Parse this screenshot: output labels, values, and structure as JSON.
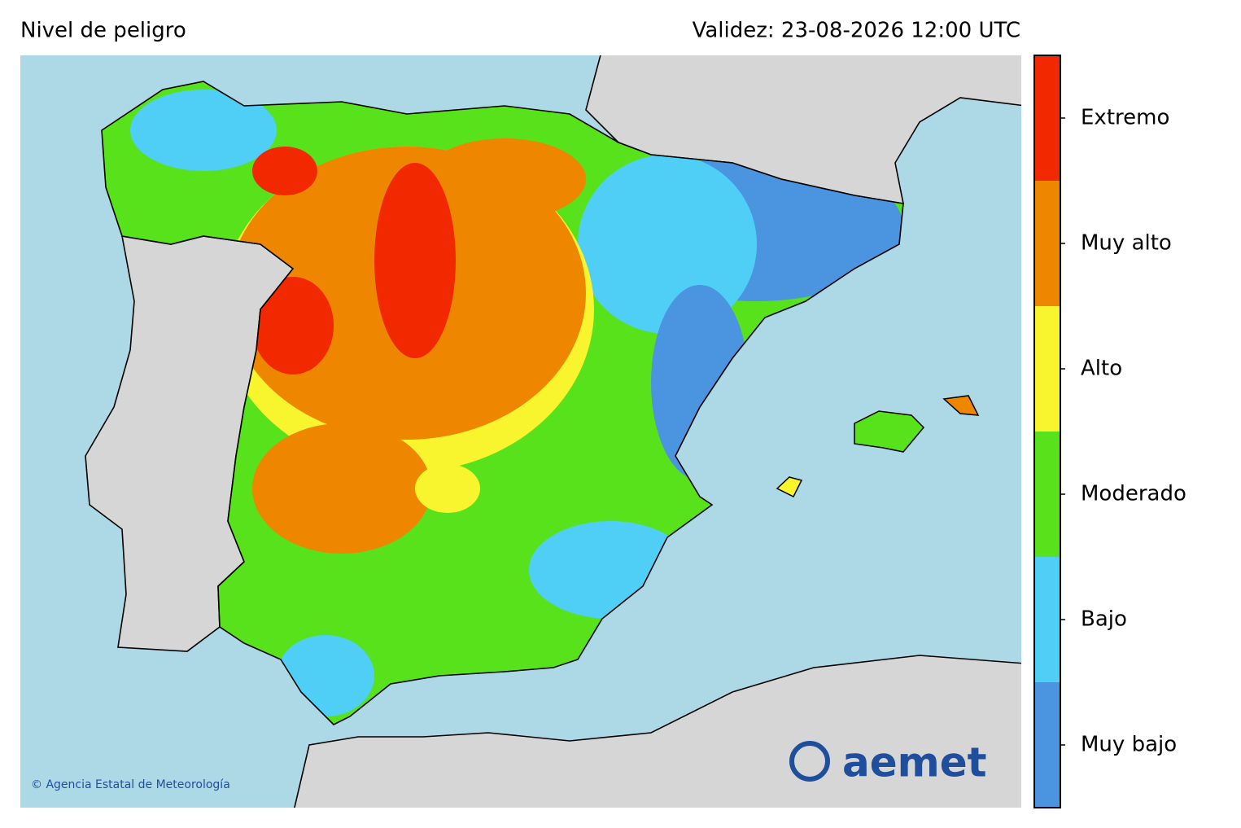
{
  "header": {
    "title": "Nivel de peligro",
    "validity": "Validez: 23-08-2026 12:00 UTC"
  },
  "legend": {
    "levels": [
      {
        "label": "Muy bajo",
        "color": "#4a94e0"
      },
      {
        "label": "Bajo",
        "color": "#4fcff6"
      },
      {
        "label": "Moderado",
        "color": "#58e21c"
      },
      {
        "label": "Alto",
        "color": "#f8f42e"
      },
      {
        "label": "Muy alto",
        "color": "#ef8600"
      },
      {
        "label": "Extremo",
        "color": "#f22800"
      }
    ]
  },
  "footer": {
    "copyright": "© Agencia Estatal de Meteorología",
    "logo": "aemet"
  }
}
